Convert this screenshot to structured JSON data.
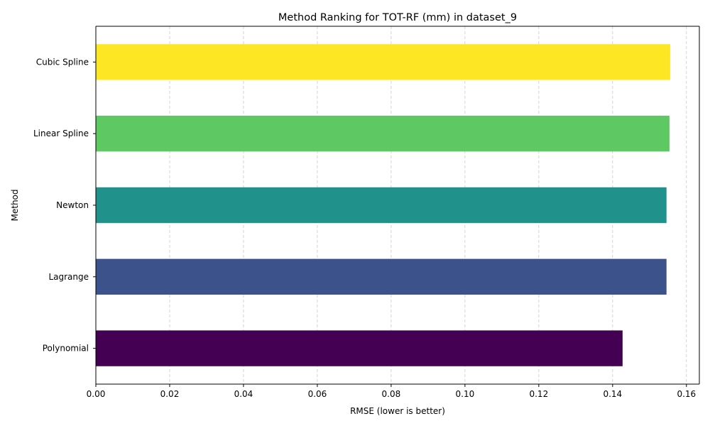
{
  "chart_data": {
    "type": "bar",
    "orientation": "horizontal",
    "title": "Method Ranking for TOT-RF (mm) in dataset_9",
    "xlabel": "RMSE (lower is better)",
    "ylabel": "Method",
    "categories": [
      "Polynomial",
      "Lagrange",
      "Newton",
      "Linear Spline",
      "Cubic Spline"
    ],
    "values": [
      0.1427,
      0.1546,
      0.1546,
      0.1554,
      0.1556
    ],
    "colors": [
      "#440154",
      "#3b528b",
      "#21918c",
      "#5ec962",
      "#fde725"
    ],
    "xlim": [
      0,
      0.1635
    ],
    "xticks": [
      0.0,
      0.02,
      0.04,
      0.06,
      0.08,
      0.1,
      0.12,
      0.14,
      0.16
    ],
    "xtick_labels": [
      "0.00",
      "0.02",
      "0.04",
      "0.06",
      "0.08",
      "0.10",
      "0.12",
      "0.14",
      "0.16"
    ],
    "grid": "x-dashed"
  }
}
